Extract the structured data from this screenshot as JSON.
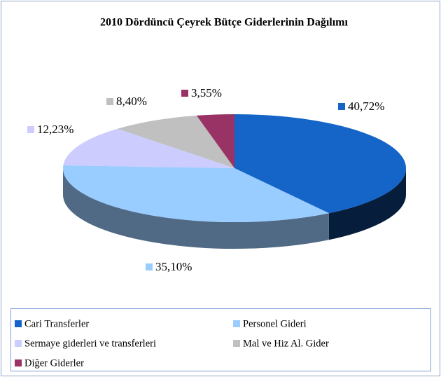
{
  "chart_data": {
    "type": "pie",
    "title": "2010 Dördüncü Çeyrek Bütçe Giderlerinin Dağılımı",
    "categories": [
      "Cari Transferler",
      "Personel Gideri",
      "Sermaye giderleri ve transferleri",
      "Mal ve Hiz Al. Gider",
      "Diğer Giderler"
    ],
    "values": [
      40.72,
      35.1,
      12.23,
      8.4,
      3.55
    ],
    "value_labels": [
      "40,72%",
      "35,10%",
      "12,23%",
      "8,40%",
      "3,55%"
    ],
    "colors": [
      "#1565c8",
      "#99ccff",
      "#ccccff",
      "#c0c0c0",
      "#993366"
    ],
    "legend": "bottom"
  }
}
